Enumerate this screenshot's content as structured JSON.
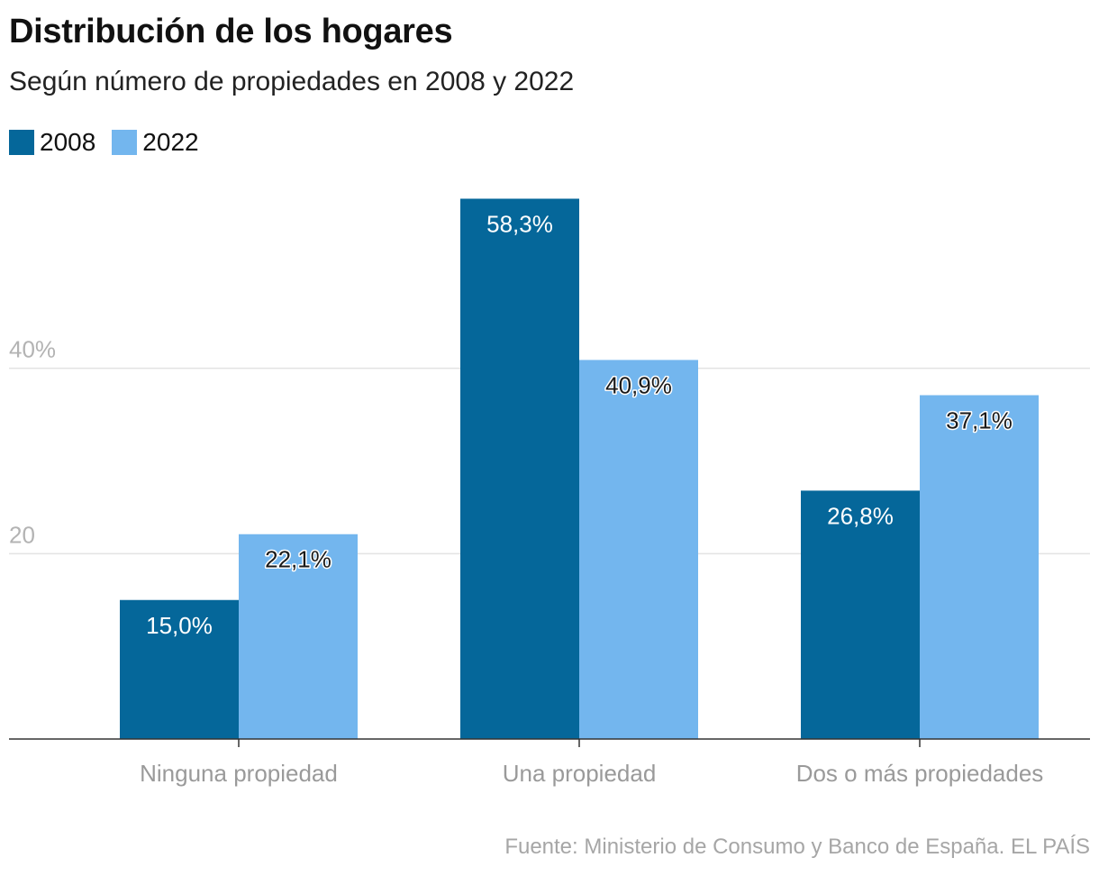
{
  "header": {
    "title": "Distribución de los hogares",
    "subtitle": "Según número de propiedades en 2008 y 2022"
  },
  "legend": {
    "items": [
      {
        "label": "2008",
        "color": "#05679a"
      },
      {
        "label": "2022",
        "color": "#73b6ee"
      }
    ]
  },
  "chart_data": {
    "type": "bar",
    "title": "Distribución de los hogares",
    "subtitle": "Según número de propiedades en 2008 y 2022",
    "categories": [
      "Ninguna propiedad",
      "Una propiedad",
      "Dos o más propiedades"
    ],
    "series": [
      {
        "name": "2008",
        "values": [
          15.0,
          58.3,
          26.8
        ],
        "labels": [
          "15,0%",
          "58,3%",
          "26,8%"
        ],
        "color": "#05679a"
      },
      {
        "name": "2022",
        "values": [
          22.1,
          40.9,
          37.1
        ],
        "labels": [
          "22,1%",
          "40,9%",
          "37,1%"
        ],
        "color": "#73b6ee"
      }
    ],
    "yticks": [
      {
        "value": 20,
        "label": "20"
      },
      {
        "value": 40,
        "label": "40%"
      }
    ],
    "ylim": [
      0,
      60
    ],
    "grid": true,
    "legend_position": "top-left",
    "xlabel": "",
    "ylabel": ""
  },
  "footer": {
    "source": "Fuente: Ministerio de Consumo y Banco de España. EL PAÍS"
  }
}
